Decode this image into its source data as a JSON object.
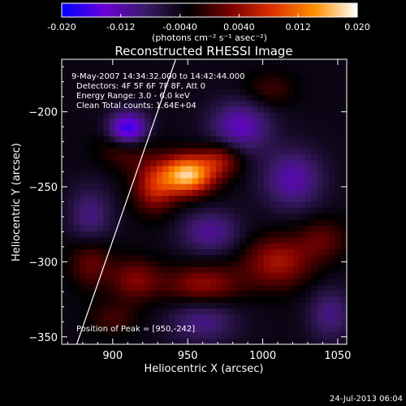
{
  "chart_data": {
    "type": "heatmap",
    "title": "Reconstructed RHESSI Image",
    "colorbar": {
      "min": -0.02,
      "max": 0.02,
      "ticks": [
        "-0.020",
        "-0.012",
        "-0.0040",
        "0.0040",
        "0.012",
        "0.020"
      ],
      "tick_values": [
        -0.02,
        -0.012,
        -0.004,
        0.004,
        0.012,
        0.02
      ],
      "unit_label": "(photons cm⁻² s⁻¹ asec⁻²)",
      "colors": [
        "#0000ff",
        "#6a00d8",
        "#3a1a66",
        "#000000",
        "#7a0000",
        "#e03000",
        "#ff9000",
        "#ffffff"
      ]
    },
    "xlabel": "Heliocentric X (arcsec)",
    "ylabel": "Heliocentric Y (arcsec)",
    "xlim": [
      866,
      1056
    ],
    "ylim": [
      -355,
      -165
    ],
    "xticks": [
      900,
      950,
      1000,
      1050
    ],
    "yticks": [
      -200,
      -250,
      -300,
      -350
    ],
    "annotations": [
      "9-May-2007 14:34:32.000 to 14:42:44.000",
      "Detectors: 4F 5F 6F 7F 8F, Att 0",
      "Energy Range: 3.0 - 6.0 keV",
      "Clean     Total counts: 1.64E+04"
    ],
    "peak_label": "Position of Peak = [950,-242]",
    "peak": [
      950,
      -242
    ],
    "sources": [
      {
        "x": 950,
        "y": -242,
        "amp": 0.021,
        "sx": 12,
        "sy": 9
      },
      {
        "x": 928,
        "y": -250,
        "amp": 0.01,
        "sx": 10,
        "sy": 12
      },
      {
        "x": 972,
        "y": -232,
        "amp": 0.008,
        "sx": 10,
        "sy": 8
      },
      {
        "x": 908,
        "y": -223,
        "amp": 0.006,
        "sx": 12,
        "sy": 10
      },
      {
        "x": 1010,
        "y": -300,
        "amp": 0.009,
        "sx": 16,
        "sy": 12
      },
      {
        "x": 1040,
        "y": -285,
        "amp": 0.005,
        "sx": 12,
        "sy": 10
      },
      {
        "x": 960,
        "y": -315,
        "amp": 0.008,
        "sx": 18,
        "sy": 9
      },
      {
        "x": 915,
        "y": -312,
        "amp": 0.007,
        "sx": 12,
        "sy": 10
      },
      {
        "x": 885,
        "y": -300,
        "amp": 0.006,
        "sx": 10,
        "sy": 12
      },
      {
        "x": 900,
        "y": -338,
        "amp": 0.004,
        "sx": 12,
        "sy": 8
      },
      {
        "x": 1005,
        "y": -185,
        "amp": 0.004,
        "sx": 12,
        "sy": 8
      },
      {
        "x": 910,
        "y": -212,
        "amp": -0.016,
        "sx": 9,
        "sy": 8
      },
      {
        "x": 985,
        "y": -210,
        "amp": -0.009,
        "sx": 14,
        "sy": 12
      },
      {
        "x": 1020,
        "y": -245,
        "amp": -0.008,
        "sx": 14,
        "sy": 14
      },
      {
        "x": 885,
        "y": -270,
        "amp": -0.006,
        "sx": 10,
        "sy": 14
      },
      {
        "x": 965,
        "y": -280,
        "amp": -0.007,
        "sx": 14,
        "sy": 10
      },
      {
        "x": 960,
        "y": -340,
        "amp": -0.006,
        "sx": 16,
        "sy": 10
      },
      {
        "x": 1045,
        "y": -335,
        "amp": -0.006,
        "sx": 10,
        "sy": 12
      }
    ],
    "background_level": -0.004,
    "limb_line": {
      "x1": 876,
      "y1": -355,
      "x2": 942,
      "y2": -165
    }
  },
  "footer": {
    "timestamp": "24-Jul-2013 06:04"
  }
}
